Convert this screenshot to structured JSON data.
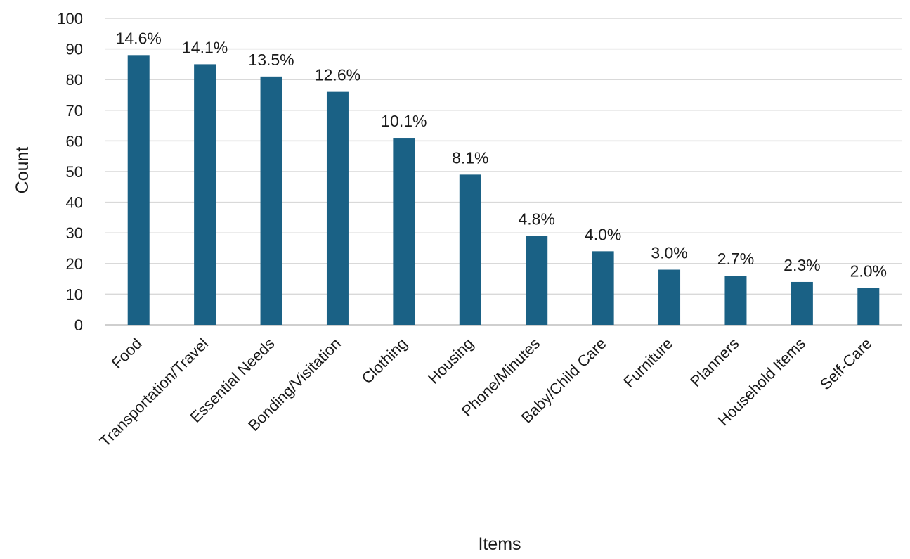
{
  "chart_data": {
    "type": "bar",
    "title": "",
    "xlabel": "Items",
    "ylabel": "Count",
    "ylim": [
      0,
      100
    ],
    "yticks": [
      0,
      10,
      20,
      30,
      40,
      50,
      60,
      70,
      80,
      90,
      100
    ],
    "grid": "horizontal",
    "legend": "none",
    "bar_color": "#1a6185",
    "categories": [
      "Food",
      "Transportation/Travel",
      "Essential Needs",
      "Bonding/Visitation",
      "Clothing",
      "Housing",
      "Phone/Minutes",
      "Baby/Child Care",
      "Furniture",
      "Planners",
      "Household Items",
      "Self-Care"
    ],
    "values": [
      88,
      85,
      81,
      76,
      61,
      49,
      29,
      24,
      18,
      16,
      14,
      12
    ],
    "data_labels": [
      "14.6%",
      "14.1%",
      "13.5%",
      "12.6%",
      "10.1%",
      "8.1%",
      "4.8%",
      "4.0%",
      "3.0%",
      "2.7%",
      "2.3%",
      "2.0%"
    ]
  }
}
